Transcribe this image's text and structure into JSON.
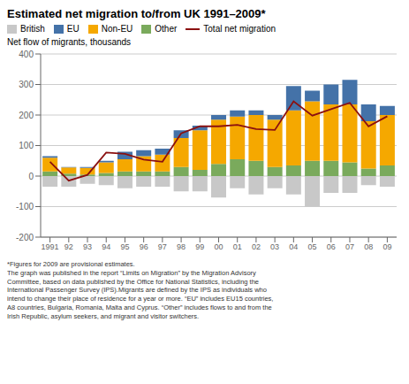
{
  "chart_data": {
    "type": "bar",
    "title": "Estimated net migration to/from UK 1991–2009*",
    "y_label": "Net flow of migrants, thousands",
    "categories": [
      "1991",
      "92",
      "93",
      "94",
      "95",
      "96",
      "97",
      "98",
      "99",
      "00",
      "01",
      "02",
      "03",
      "04",
      "05",
      "06",
      "07",
      "08",
      "09"
    ],
    "series": [
      {
        "name": "British",
        "color": "#c8c8c8",
        "type": "bar",
        "values": [
          -35,
          -35,
          -25,
          -30,
          -40,
          -35,
          -35,
          -50,
          -50,
          -70,
          -40,
          -60,
          -40,
          -60,
          -100,
          -55,
          -55,
          -30,
          -35
        ]
      },
      {
        "name": "EU",
        "color": "#4472a8",
        "type": "bar",
        "values": [
          5,
          2,
          3,
          5,
          25,
          20,
          20,
          25,
          15,
          15,
          20,
          15,
          15,
          80,
          35,
          65,
          80,
          55,
          30
        ]
      },
      {
        "name": "Non-EU",
        "color": "#f5a800",
        "type": "bar",
        "values": [
          45,
          20,
          22,
          35,
          40,
          50,
          55,
          95,
          130,
          145,
          140,
          150,
          155,
          180,
          195,
          185,
          190,
          155,
          165
        ]
      },
      {
        "name": "Other",
        "color": "#7aaa5c",
        "type": "bar",
        "values": [
          15,
          8,
          5,
          10,
          15,
          15,
          15,
          30,
          20,
          40,
          55,
          50,
          30,
          35,
          50,
          50,
          45,
          25,
          35
        ]
      },
      {
        "name": "Total net migration",
        "color": "#8b1010",
        "type": "line",
        "values": [
          47,
          -15,
          4,
          77,
          73,
          54,
          47,
          140,
          163,
          163,
          168,
          154,
          151,
          245,
          198,
          219,
          240,
          163,
          196
        ]
      }
    ],
    "ylim": [
      -200,
      400
    ],
    "yticks": [
      -200,
      -100,
      0,
      100,
      200,
      300,
      400
    ],
    "stacked": true,
    "grid": true,
    "legend": "top",
    "annotations": [
      "*Figures for 2009 are provisional estimates.",
      "The graph was published in the report “Limits on Migration” by the Migration Advisory\nCommittee, based on data published by the Office for National Statistics, including the\nInternational Passenger Survey (IPS).Migrants are defined by the IPS as individuals who\nintend to change their place of residence for a year or more. “EU” includes EU15 countries,\nA8 countries, Bulgaria, Romania, Malta and Cyprus. “Other” includes flows to and from the\nIrish Republic, asylum seekers, and migrant and visitor switchers."
    ]
  }
}
